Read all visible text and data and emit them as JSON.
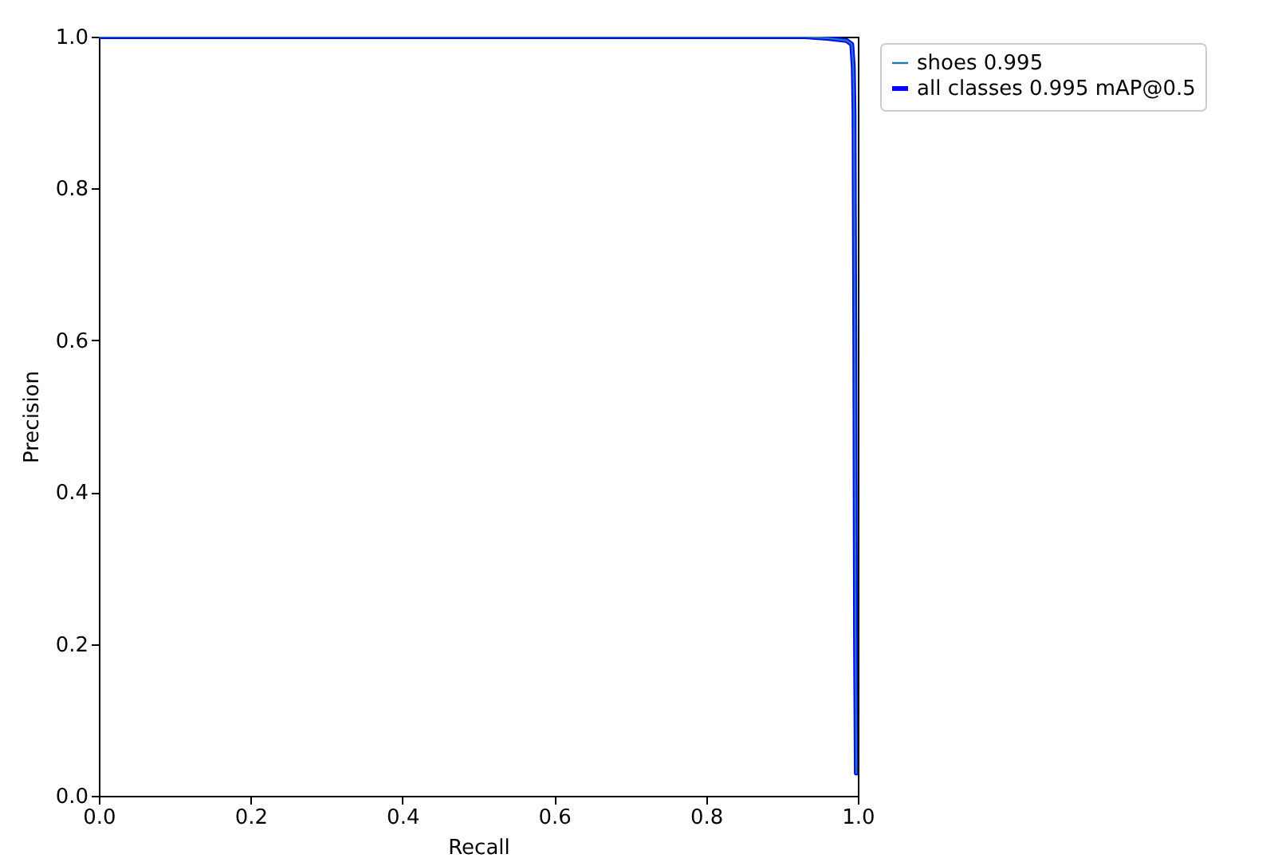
{
  "chart_data": {
    "type": "line",
    "xlabel": "Recall",
    "ylabel": "Precision",
    "xlim": [
      0,
      1
    ],
    "ylim": [
      0,
      1
    ],
    "xticks": [
      {
        "value": 0,
        "label": "0.0"
      },
      {
        "value": 0.2,
        "label": "0.2"
      },
      {
        "value": 0.4,
        "label": "0.4"
      },
      {
        "value": 0.6,
        "label": "0.6"
      },
      {
        "value": 0.8,
        "label": "0.8"
      },
      {
        "value": 1,
        "label": "1.0"
      }
    ],
    "yticks": [
      {
        "value": 0,
        "label": "0.0"
      },
      {
        "value": 0.2,
        "label": "0.2"
      },
      {
        "value": 0.4,
        "label": "0.4"
      },
      {
        "value": 0.6,
        "label": "0.6"
      },
      {
        "value": 0.8,
        "label": "0.8"
      },
      {
        "value": 1,
        "label": "1.0"
      }
    ],
    "x": [
      0,
      0.5,
      0.93,
      0.96,
      0.985,
      0.992,
      0.994,
      0.995,
      0.996,
      0.997,
      0.998
    ],
    "series": [
      {
        "name": "all classes 0.995 mAP@0.5",
        "color": "#0000ff",
        "values": [
          1,
          1,
          1,
          0.998,
          0.995,
          0.99,
          0.96,
          0.9,
          0.6,
          0.2,
          0.03
        ]
      },
      {
        "name": "shoes 0.995",
        "color": "#1f77b4",
        "values": [
          1,
          1,
          1,
          0.998,
          0.995,
          0.99,
          0.96,
          0.9,
          0.6,
          0.2,
          0.03
        ]
      }
    ],
    "legend": "top right",
    "grid": false,
    "marker": "none",
    "line_style": "solid"
  }
}
